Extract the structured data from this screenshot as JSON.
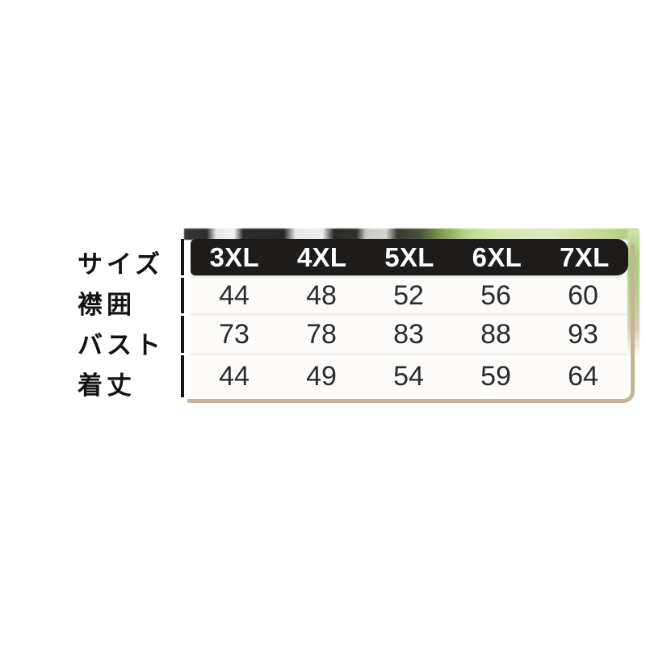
{
  "chart_data": {
    "type": "table",
    "corner_label": "サイズ",
    "columns": [
      "3XL",
      "4XL",
      "5XL",
      "6XL",
      "7XL"
    ],
    "rows": [
      {
        "label": "襟囲",
        "values": [
          "44",
          "48",
          "52",
          "56",
          "60"
        ]
      },
      {
        "label": "バスト",
        "values": [
          "73",
          "78",
          "83",
          "88",
          "93"
        ]
      },
      {
        "label": "着丈",
        "values": [
          "44",
          "49",
          "54",
          "59",
          "64"
        ]
      }
    ],
    "layout_hints": {
      "header_position": "top",
      "row_labels_position": "left",
      "grid": "off"
    }
  },
  "colors": {
    "canvas_bg": "#ffffff",
    "header_bg": "#1e1c1a",
    "header_text": "#ffffff",
    "cell_text": "#2b2b2b",
    "label_text": "#111111",
    "frame_tan": "#c6b493",
    "row_bg": "#fdfcfa",
    "photo_green": "#a9cb7d"
  }
}
